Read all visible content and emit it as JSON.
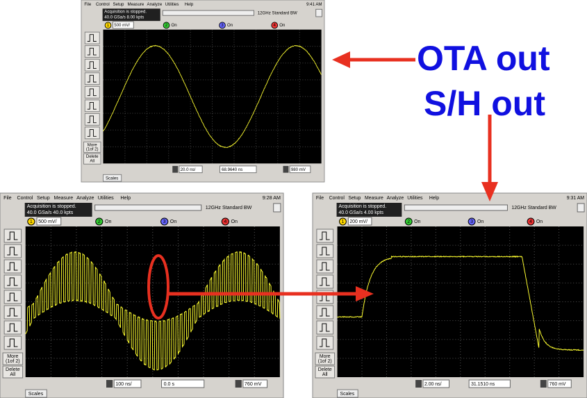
{
  "slide": {
    "labels": [
      "OTA out",
      "S/H out"
    ]
  },
  "menu": [
    "File",
    "Control",
    "Setup",
    "Measure",
    "Analyze",
    "Utilities",
    "Help"
  ],
  "status": "Acquisition is stopped.",
  "bandwidth": "12GHz Standard BW",
  "channels": [
    "1",
    "2",
    "3",
    "4"
  ],
  "channel_on": "On",
  "buttons": [
    [
      "More",
      "(1of 2)"
    ],
    [
      "Delete",
      "All"
    ]
  ],
  "tab": "Scales",
  "scopes": [
    {
      "time": "9:41 AM",
      "acquisition": "40.0 GSa/s   8.00 kpts",
      "channel_scale": "500 mV/",
      "timebase": "20.0 ns/",
      "delay": "68.9640 ns",
      "trigger_level": "980 mV"
    },
    {
      "time": "9:28 AM",
      "acquisition": "40.0 GSa/s   40.0 kpts",
      "channel_scale": "500 mV/",
      "timebase": "100 ns/",
      "delay": "0.0 s",
      "trigger_level": "760 mV"
    },
    {
      "time": "9:31 AM",
      "acquisition": "40.0 GSa/s   4.00 kpts",
      "channel_scale": "200 mV/",
      "timebase": "2.00 ns/",
      "delay": "31.1510 ns",
      "trigger_level": "760 mV"
    }
  ]
}
